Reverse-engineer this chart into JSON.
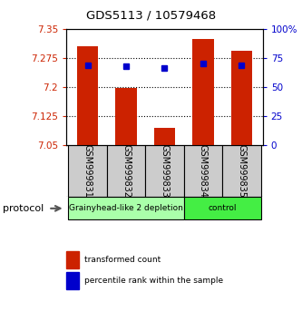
{
  "title": "GDS5113 / 10579468",
  "samples": [
    "GSM999831",
    "GSM999832",
    "GSM999833",
    "GSM999834",
    "GSM999835"
  ],
  "bar_bottoms": [
    7.05,
    7.05,
    7.05,
    7.05,
    7.05
  ],
  "bar_tops": [
    7.305,
    7.198,
    7.095,
    7.323,
    7.293
  ],
  "blue_dots": [
    7.257,
    7.254,
    7.25,
    7.26,
    7.257
  ],
  "bar_color": "#cc2200",
  "dot_color": "#0000cc",
  "ylim": [
    7.05,
    7.35
  ],
  "yticks": [
    7.05,
    7.125,
    7.2,
    7.275,
    7.35
  ],
  "ytick_labels": [
    "7.05",
    "7.125",
    "7.2",
    "7.275",
    "7.35"
  ],
  "y2ticks": [
    0,
    25,
    50,
    75,
    100
  ],
  "y2tick_labels": [
    "0",
    "25",
    "50",
    "75",
    "100%"
  ],
  "left_color": "#cc2200",
  "right_color": "#0000cc",
  "groups": [
    {
      "label": "Grainyhead-like 2 depletion",
      "start": 0,
      "end": 3,
      "color": "#aaffaa"
    },
    {
      "label": "control",
      "start": 3,
      "end": 5,
      "color": "#44ee44"
    }
  ],
  "protocol_label": "protocol",
  "legend_items": [
    {
      "color": "#cc2200",
      "label": "transformed count"
    },
    {
      "color": "#0000cc",
      "label": "percentile rank within the sample"
    }
  ],
  "grid_color": "#000000",
  "background_color": "#ffffff",
  "plot_bg": "#ffffff",
  "sample_bg": "#cccccc"
}
